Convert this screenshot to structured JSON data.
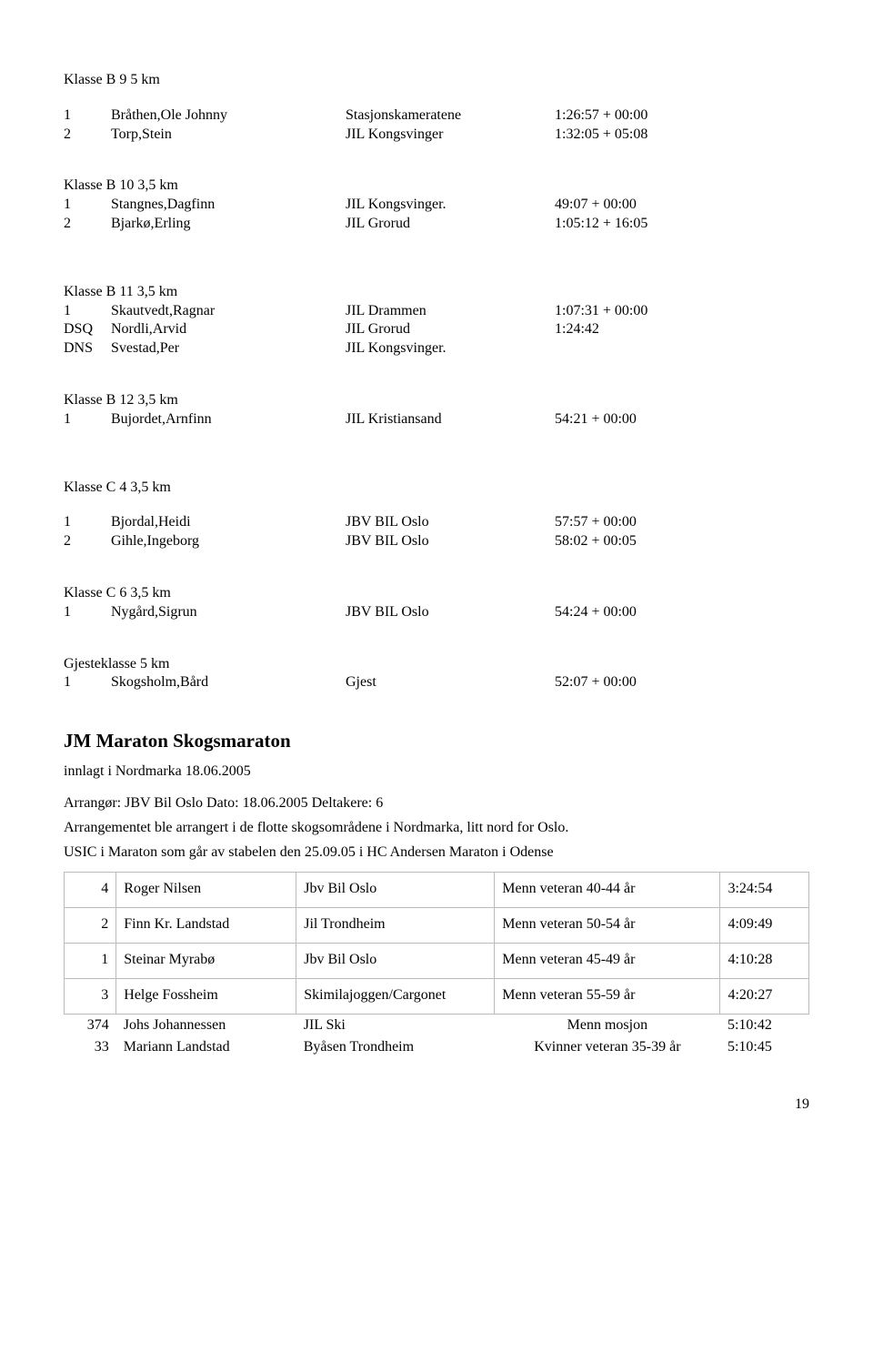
{
  "sections": [
    {
      "heading": "Klasse B 9    5 km",
      "rows": [
        {
          "place": "1",
          "name": "Bråthen,Ole Johnny",
          "club": "Stasjonskameratene",
          "time": "1:26:57 +  00:00"
        },
        {
          "place": "2",
          "name": "Torp,Stein",
          "club": "JIL Kongsvinger",
          "time": "1:32:05 +  05:08"
        }
      ]
    },
    {
      "heading": "Klasse B 10  3,5 km",
      "rows": [
        {
          "place": "1",
          "name": "Stangnes,Dagfinn",
          "club": "JIL Kongsvinger.",
          "time": "49:07 +  00:00"
        },
        {
          "place": "2",
          "name": "Bjarkø,Erling",
          "club": "JIL Grorud",
          "time": "1:05:12 +  16:05"
        }
      ]
    },
    {
      "heading": "Klasse B 11  3,5 km",
      "rows": [
        {
          "place": "1",
          "name": "Skautvedt,Ragnar",
          "club": "JIL Drammen",
          "time": "1:07:31 +  00:00"
        },
        {
          "place": "DSQ",
          "name": "Nordli,Arvid",
          "club": "JIL Grorud",
          "time": "1:24:42"
        },
        {
          "place": "DNS",
          "name": "Svestad,Per",
          "club": "JIL Kongsvinger.",
          "time": ""
        }
      ]
    },
    {
      "heading": "Klasse B 12  3,5 km",
      "rows": [
        {
          "place": "1",
          "name": "Bujordet,Arnfinn",
          "club": "JIL Kristiansand",
          "time": "54:21 +  00:00"
        }
      ]
    },
    {
      "heading": "Klasse C 4    3,5 km",
      "rows": [
        {
          "place": "1",
          "name": "Bjordal,Heidi",
          "club": "JBV BIL Oslo",
          "time": "57:57 +  00:00"
        },
        {
          "place": "2",
          "name": "Gihle,Ingeborg",
          "club": "JBV BIL Oslo",
          "time": "58:02 +  00:05"
        }
      ]
    },
    {
      "heading": "Klasse C 6    3,5 km",
      "rows": [
        {
          "place": "1",
          "name": "Nygård,Sigrun",
          "club": "JBV BIL Oslo",
          "time": "54:24 +  00:00"
        }
      ]
    },
    {
      "heading": "Gjesteklasse 5 km",
      "rows": [
        {
          "place": "1",
          "name": "Skogsholm,Bård",
          "club": "Gjest",
          "time": "52:07 +  00:00"
        }
      ]
    }
  ],
  "event": {
    "title": "JM Maraton Skogsmaraton",
    "subtitle": "innlagt i Nordmarka 18.06.2005",
    "meta": "Arrangør: JBV Bil Oslo    Dato: 18.06.2005     Deltakere: 6",
    "desc1": "Arrangementet ble arrangert i de flotte skogsområdene i Nordmarka, litt nord for Oslo.",
    "desc2": "USIC i Maraton som går av stabelen den 25.09.05 i HC Andersen Maraton i Odense"
  },
  "table2": {
    "bordered": [
      {
        "place": "4",
        "name": "Roger Nilsen",
        "club": "Jbv Bil Oslo",
        "cat": "Menn veteran 40-44 år",
        "time": "3:24:54"
      },
      {
        "place": "2",
        "name": "Finn Kr. Landstad",
        "club": "Jil Trondheim",
        "cat": "Menn veteran 50-54 år",
        "time": "4:09:49"
      },
      {
        "place": "1",
        "name": "Steinar Myrabø",
        "club": "Jbv Bil Oslo",
        "cat": "Menn veteran 45-49 år",
        "time": "4:10:28"
      },
      {
        "place": "3",
        "name": "Helge Fossheim",
        "club": "Skimilajoggen/Cargonet",
        "cat": "Menn veteran 55-59 år",
        "time": "4:20:27"
      }
    ],
    "plain": [
      {
        "place": "374",
        "name": "Johs Johannessen",
        "club": "JIL Ski",
        "cat": "Menn mosjon",
        "time": "5:10:42"
      },
      {
        "place": "33",
        "name": "Mariann Landstad",
        "club": "Byåsen Trondheim",
        "cat": "Kvinner veteran 35-39 år",
        "time": "5:10:45"
      }
    ]
  },
  "page_number": "19"
}
